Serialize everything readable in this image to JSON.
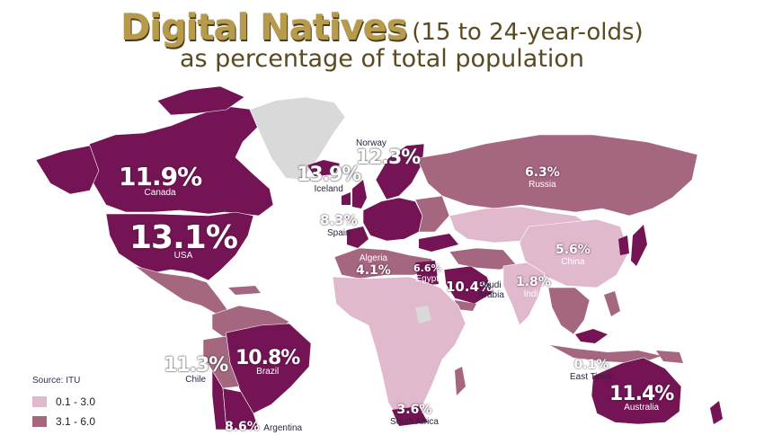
{
  "title": {
    "main": "Digital Natives",
    "sub": "(15 to 24-year-olds)",
    "line2": "as percentage of total population"
  },
  "colors": {
    "high": "#741454",
    "mid": "#a5667f",
    "low": "#e0b9cd",
    "nodata": "#d9d9d9",
    "title_gold": "#b89a4c"
  },
  "labels": {
    "canada": {
      "value": "11.9%",
      "name": "Canada"
    },
    "usa": {
      "value": "13.1%",
      "name": "USA"
    },
    "iceland": {
      "value": "13.9%",
      "name": "Iceland"
    },
    "norway": {
      "value": "12.3%",
      "name": "Norway"
    },
    "russia": {
      "value": "6.3%",
      "name": "Russia"
    },
    "spain": {
      "value": "8.3%",
      "name": "Spain"
    },
    "algeria": {
      "value": "4.1%",
      "name": "Algeria"
    },
    "egypt": {
      "value": "6.6%",
      "name": "Egypt"
    },
    "saudi": {
      "value": "10.4%",
      "name_line1": "Saudi",
      "name_line2": "Arabia"
    },
    "india": {
      "value": "1.8%",
      "name": "India"
    },
    "china": {
      "value": "5.6%",
      "name": "China"
    },
    "brazil": {
      "value": "10.8%",
      "name": "Brazil"
    },
    "chile": {
      "value": "11.3%",
      "name": "Chile"
    },
    "east_timor": {
      "value": "0.1%",
      "name": "East Timor"
    },
    "australia": {
      "value": "11.4%",
      "name": "Australia"
    },
    "south_africa": {
      "value": "3.6%",
      "name": "South Africa"
    },
    "argentina": {
      "value": "8.6%",
      "name": "Argentina"
    }
  },
  "source": "Source: ITU",
  "legend": [
    {
      "label": "0.1 - 3.0",
      "color": "#e0b9cd"
    },
    {
      "label": "3.1 - 6.0",
      "color": "#a5667f"
    }
  ]
}
